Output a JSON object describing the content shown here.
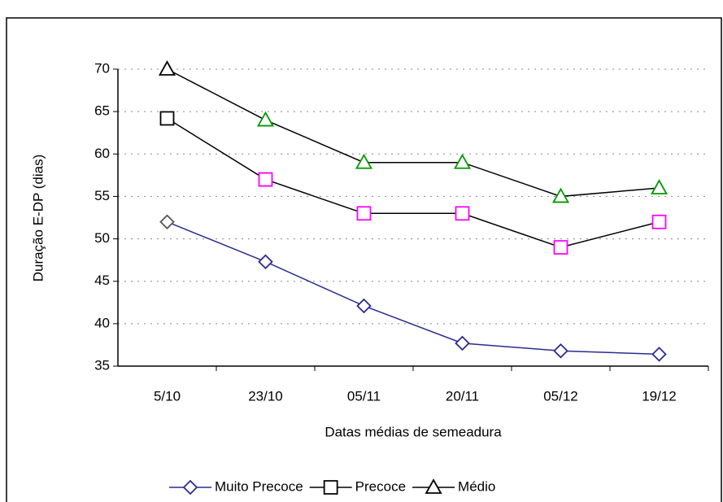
{
  "chart_data": {
    "type": "line",
    "xlabel": "Datas médias de semeadura",
    "ylabel": "Duração  E-DP (dias)",
    "categories": [
      "5/10",
      "23/10",
      "05/11",
      "20/11",
      "05/12",
      "19/12"
    ],
    "ylim": [
      35,
      70
    ],
    "yticks": [
      35,
      40,
      45,
      50,
      55,
      60,
      65,
      70
    ],
    "grid": true,
    "legend": "bottom",
    "series": [
      {
        "name": "Muito  Precoce",
        "color": "#2b2b8f",
        "marker": "diamond",
        "marker_colors": [
          "#555555",
          "#2b2b8f",
          "#2b2b8f",
          "#2b2b8f",
          "#2b2b8f",
          "#2b2b8f"
        ],
        "values": [
          52,
          47.3,
          42.1,
          37.7,
          36.8,
          36.4
        ]
      },
      {
        "name": "Precoce",
        "color": "#000000",
        "marker": "square",
        "marker_colors": [
          "#000000",
          "#ff00ff",
          "#ff00ff",
          "#ff00ff",
          "#ff00ff",
          "#ff00ff"
        ],
        "values": [
          64.2,
          57,
          53,
          53,
          49,
          52
        ]
      },
      {
        "name": "Médio",
        "color": "#000000",
        "marker": "triangle",
        "marker_colors": [
          "#000000",
          "#009900",
          "#009900",
          "#009900",
          "#009900",
          "#009900"
        ],
        "values": [
          70,
          64,
          59,
          59,
          55,
          56
        ]
      }
    ]
  }
}
